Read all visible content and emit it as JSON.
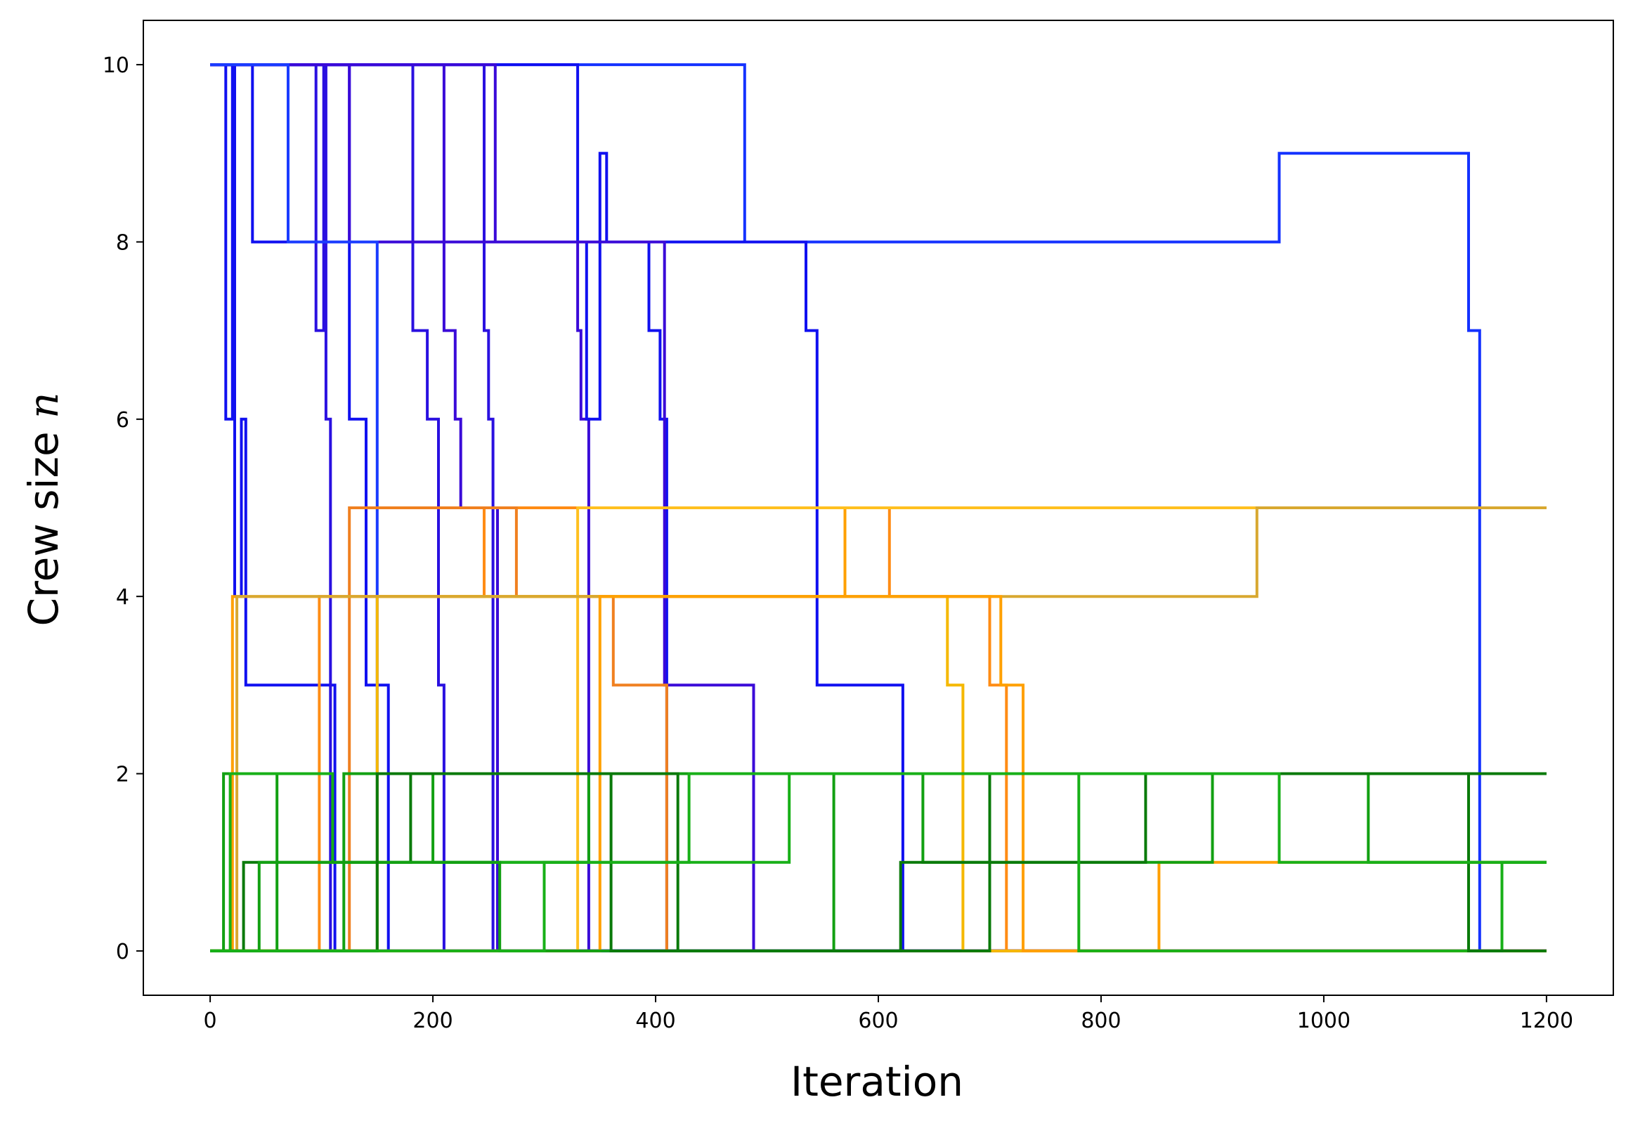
{
  "chart_data": {
    "type": "line",
    "title": "",
    "xlabel": "Iteration",
    "ylabel_text": "Crew size ",
    "ylabel_symbol": "n",
    "xlim": [
      -60,
      1260
    ],
    "ylim": [
      -0.5,
      10.5
    ],
    "xticks": [
      0,
      200,
      400,
      600,
      800,
      1000,
      1200
    ],
    "yticks": [
      0,
      2,
      4,
      6,
      8,
      10
    ],
    "grid": false,
    "legend": "none",
    "colors": {
      "blue_a": "#1432ff",
      "blue_b": "#1010f0",
      "blue_c": "#2a10e0",
      "violet": "#3a0ad8",
      "blue_d": "#0a22f0",
      "blue_e": "#1a3cff",
      "orange": "#ff8c14",
      "orange_b": "#f08020",
      "amber": "#ffa000",
      "gold": "#f5b800",
      "mustard": "#d8a830",
      "yellow": "#ffc020",
      "green": "#12a012",
      "green_dark": "#0a7a0a",
      "green_light": "#18b018"
    },
    "series": [
      {
        "color": "#1432ff",
        "points": [
          [
            0,
            10
          ],
          [
            480,
            10
          ],
          [
            480,
            8
          ],
          [
            960,
            8
          ],
          [
            960,
            9
          ],
          [
            1130,
            9
          ],
          [
            1130,
            7
          ],
          [
            1140,
            7
          ],
          [
            1140,
            0
          ],
          [
            1200,
            0
          ]
        ]
      },
      {
        "color": "#1010f0",
        "points": [
          [
            0,
            10
          ],
          [
            38,
            10
          ],
          [
            38,
            8
          ],
          [
            535,
            8
          ],
          [
            535,
            7
          ],
          [
            545,
            7
          ],
          [
            545,
            3
          ],
          [
            622,
            3
          ],
          [
            622,
            0
          ],
          [
            1200,
            0
          ]
        ]
      },
      {
        "color": "#1010f0",
        "points": [
          [
            0,
            10
          ],
          [
            14,
            10
          ],
          [
            14,
            6
          ],
          [
            20,
            6
          ],
          [
            20,
            10
          ],
          [
            22,
            10
          ],
          [
            22,
            4
          ],
          [
            28,
            4
          ],
          [
            28,
            6
          ],
          [
            32,
            6
          ],
          [
            32,
            3
          ],
          [
            112,
            3
          ],
          [
            112,
            0
          ],
          [
            1200,
            0
          ]
        ]
      },
      {
        "color": "#2a10e0",
        "points": [
          [
            0,
            10
          ],
          [
            95,
            10
          ],
          [
            95,
            7
          ],
          [
            102,
            7
          ],
          [
            102,
            10
          ],
          [
            104,
            10
          ],
          [
            104,
            6
          ],
          [
            108,
            6
          ],
          [
            108,
            0
          ],
          [
            1200,
            0
          ]
        ]
      },
      {
        "color": "#1010f0",
        "points": [
          [
            0,
            10
          ],
          [
            125,
            10
          ],
          [
            125,
            6
          ],
          [
            140,
            6
          ],
          [
            140,
            3
          ],
          [
            160,
            3
          ],
          [
            160,
            0
          ],
          [
            1200,
            0
          ]
        ]
      },
      {
        "color": "#2a10e0",
        "points": [
          [
            0,
            10
          ],
          [
            182,
            10
          ],
          [
            182,
            7
          ],
          [
            195,
            7
          ],
          [
            195,
            6
          ],
          [
            205,
            6
          ],
          [
            205,
            3
          ],
          [
            210,
            3
          ],
          [
            210,
            0
          ],
          [
            1200,
            0
          ]
        ]
      },
      {
        "color": "#3a0ad8",
        "points": [
          [
            0,
            10
          ],
          [
            210,
            10
          ],
          [
            210,
            7
          ],
          [
            220,
            7
          ],
          [
            220,
            6
          ],
          [
            225,
            6
          ],
          [
            225,
            5
          ],
          [
            258,
            5
          ],
          [
            258,
            0
          ],
          [
            1200,
            0
          ]
        ]
      },
      {
        "color": "#2a10e0",
        "points": [
          [
            0,
            10
          ],
          [
            246,
            10
          ],
          [
            246,
            7
          ],
          [
            250,
            7
          ],
          [
            250,
            6
          ],
          [
            254,
            6
          ],
          [
            254,
            0
          ],
          [
            1200,
            0
          ]
        ]
      },
      {
        "color": "#3a0ad8",
        "points": [
          [
            0,
            10
          ],
          [
            125,
            10
          ],
          [
            125,
            8
          ],
          [
            330,
            8
          ],
          [
            330,
            7
          ],
          [
            333,
            7
          ],
          [
            333,
            6
          ],
          [
            340,
            6
          ],
          [
            340,
            0
          ],
          [
            1200,
            0
          ]
        ]
      },
      {
        "color": "#1010f0",
        "points": [
          [
            0,
            10
          ],
          [
            330,
            10
          ],
          [
            330,
            8
          ],
          [
            338,
            8
          ],
          [
            338,
            6
          ],
          [
            350,
            6
          ],
          [
            350,
            9
          ],
          [
            356,
            9
          ],
          [
            356,
            8
          ],
          [
            394,
            8
          ],
          [
            394,
            7
          ],
          [
            404,
            7
          ],
          [
            404,
            6
          ],
          [
            410,
            6
          ],
          [
            410,
            0
          ],
          [
            1200,
            0
          ]
        ]
      },
      {
        "color": "#3a0ad8",
        "points": [
          [
            0,
            10
          ],
          [
            256,
            10
          ],
          [
            256,
            8
          ],
          [
            408,
            8
          ],
          [
            408,
            3
          ],
          [
            488,
            3
          ],
          [
            488,
            0
          ],
          [
            1200,
            0
          ]
        ]
      },
      {
        "color": "#1a3cff",
        "points": [
          [
            0,
            10
          ],
          [
            70,
            10
          ],
          [
            70,
            8
          ],
          [
            150,
            8
          ],
          [
            150,
            0
          ],
          [
            1200,
            0
          ]
        ]
      },
      {
        "color": "#ff8c14",
        "points": [
          [
            0,
            0
          ],
          [
            98,
            0
          ],
          [
            98,
            4
          ],
          [
            246,
            4
          ],
          [
            246,
            5
          ],
          [
            610,
            5
          ],
          [
            610,
            4
          ],
          [
            700,
            4
          ],
          [
            700,
            3
          ],
          [
            715,
            3
          ],
          [
            715,
            0
          ],
          [
            1200,
            0
          ]
        ]
      },
      {
        "color": "#f08020",
        "points": [
          [
            0,
            0
          ],
          [
            125,
            0
          ],
          [
            125,
            5
          ],
          [
            275,
            5
          ],
          [
            275,
            4
          ],
          [
            362,
            4
          ],
          [
            362,
            3
          ],
          [
            410,
            3
          ],
          [
            410,
            0
          ],
          [
            1200,
            0
          ]
        ]
      },
      {
        "color": "#ffa000",
        "points": [
          [
            0,
            0
          ],
          [
            20,
            0
          ],
          [
            20,
            4
          ],
          [
            570,
            4
          ],
          [
            570,
            5
          ],
          [
            1200,
            5
          ]
        ]
      },
      {
        "color": "#f5b800",
        "points": [
          [
            0,
            0
          ],
          [
            150,
            0
          ],
          [
            150,
            4
          ],
          [
            662,
            4
          ],
          [
            662,
            3
          ],
          [
            676,
            3
          ],
          [
            676,
            0
          ],
          [
            1200,
            0
          ]
        ]
      },
      {
        "color": "#ffc020",
        "points": [
          [
            0,
            0
          ],
          [
            330,
            0
          ],
          [
            330,
            5
          ],
          [
            1200,
            5
          ]
        ]
      },
      {
        "color": "#d8a830",
        "points": [
          [
            0,
            0
          ],
          [
            24,
            0
          ],
          [
            24,
            4
          ],
          [
            940,
            4
          ],
          [
            940,
            5
          ],
          [
            1200,
            5
          ]
        ]
      },
      {
        "color": "#ffa000",
        "points": [
          [
            0,
            0
          ],
          [
            350,
            0
          ],
          [
            350,
            4
          ],
          [
            710,
            4
          ],
          [
            710,
            3
          ],
          [
            730,
            3
          ],
          [
            730,
            0
          ],
          [
            852,
            0
          ],
          [
            852,
            1
          ],
          [
            1200,
            1
          ]
        ]
      },
      {
        "color": "#12a012",
        "points": [
          [
            0,
            0
          ],
          [
            12,
            0
          ],
          [
            12,
            2
          ],
          [
            60,
            2
          ],
          [
            60,
            0
          ],
          [
            120,
            0
          ],
          [
            120,
            2
          ],
          [
            200,
            2
          ],
          [
            200,
            1
          ],
          [
            340,
            1
          ],
          [
            340,
            2
          ],
          [
            640,
            2
          ],
          [
            640,
            1
          ],
          [
            900,
            1
          ],
          [
            900,
            2
          ],
          [
            1200,
            2
          ]
        ]
      },
      {
        "color": "#0a7a0a",
        "points": [
          [
            0,
            0
          ],
          [
            30,
            0
          ],
          [
            30,
            1
          ],
          [
            180,
            1
          ],
          [
            180,
            2
          ],
          [
            420,
            2
          ],
          [
            420,
            0
          ],
          [
            620,
            0
          ],
          [
            620,
            1
          ],
          [
            840,
            1
          ],
          [
            840,
            2
          ],
          [
            1200,
            2
          ]
        ]
      },
      {
        "color": "#18b018",
        "points": [
          [
            0,
            0
          ],
          [
            18,
            0
          ],
          [
            18,
            2
          ],
          [
            110,
            2
          ],
          [
            110,
            1
          ],
          [
            430,
            1
          ],
          [
            430,
            2
          ],
          [
            780,
            2
          ],
          [
            780,
            0
          ],
          [
            1160,
            0
          ],
          [
            1160,
            1
          ],
          [
            1200,
            1
          ]
        ]
      },
      {
        "color": "#12a012",
        "points": [
          [
            0,
            0
          ],
          [
            44,
            0
          ],
          [
            44,
            1
          ],
          [
            260,
            1
          ],
          [
            260,
            0
          ],
          [
            560,
            0
          ],
          [
            560,
            2
          ],
          [
            1040,
            2
          ],
          [
            1040,
            1
          ],
          [
            1200,
            1
          ]
        ]
      },
      {
        "color": "#0a7a0a",
        "points": [
          [
            0,
            0
          ],
          [
            150,
            0
          ],
          [
            150,
            2
          ],
          [
            360,
            2
          ],
          [
            360,
            0
          ],
          [
            700,
            0
          ],
          [
            700,
            2
          ],
          [
            1130,
            2
          ],
          [
            1130,
            0
          ],
          [
            1200,
            0
          ]
        ]
      },
      {
        "color": "#18b018",
        "points": [
          [
            0,
            0
          ],
          [
            300,
            0
          ],
          [
            300,
            1
          ],
          [
            520,
            1
          ],
          [
            520,
            2
          ],
          [
            960,
            2
          ],
          [
            960,
            1
          ],
          [
            1200,
            1
          ]
        ]
      }
    ]
  }
}
